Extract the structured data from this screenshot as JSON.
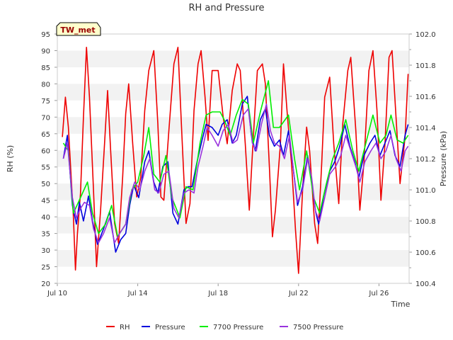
{
  "chart_data": {
    "type": "line",
    "title": "RH and Pressure",
    "badge": "TW_met",
    "xlabel": "Time",
    "ylabel_left": "RH (%)",
    "ylabel_right": "Pressure (kPa)",
    "x_range": [
      "Jul 10",
      "Jul 27.5"
    ],
    "ylim_left": [
      20,
      95
    ],
    "ylim_right": [
      100.4,
      102.0
    ],
    "x_ticks": [
      {
        "label": "Jul 10",
        "day": 0
      },
      {
        "label": "Jul 14",
        "day": 4
      },
      {
        "label": "Jul 18",
        "day": 8
      },
      {
        "label": "Jul 22",
        "day": 12
      },
      {
        "label": "Jul 26",
        "day": 16
      }
    ],
    "y_ticks_left": [
      20,
      25,
      30,
      35,
      40,
      45,
      50,
      55,
      60,
      65,
      70,
      75,
      80,
      85,
      90,
      95
    ],
    "y_ticks_right": [
      100.4,
      100.6,
      100.8,
      101.0,
      101.2,
      101.4,
      101.6,
      101.8,
      102.0
    ],
    "grid": "horizontal bands",
    "legend_position": "bottom",
    "series": [
      {
        "name": "RH",
        "axis": "left",
        "color": "#ee0000",
        "points": [
          [
            0.25,
            64
          ],
          [
            0.4,
            76
          ],
          [
            0.55,
            67
          ],
          [
            0.8,
            40
          ],
          [
            0.9,
            24
          ],
          [
            1.0,
            35
          ],
          [
            1.15,
            47
          ],
          [
            1.3,
            70
          ],
          [
            1.45,
            91
          ],
          [
            1.6,
            76
          ],
          [
            1.8,
            48
          ],
          [
            1.95,
            25
          ],
          [
            2.15,
            42
          ],
          [
            2.35,
            62
          ],
          [
            2.5,
            78
          ],
          [
            2.65,
            60
          ],
          [
            2.85,
            38
          ],
          [
            3.05,
            32
          ],
          [
            3.25,
            52
          ],
          [
            3.4,
            71
          ],
          [
            3.55,
            80
          ],
          [
            3.75,
            62
          ],
          [
            3.95,
            46
          ],
          [
            4.15,
            52
          ],
          [
            4.35,
            72
          ],
          [
            4.55,
            84
          ],
          [
            4.8,
            90
          ],
          [
            5.0,
            68
          ],
          [
            5.15,
            46
          ],
          [
            5.3,
            45
          ],
          [
            5.55,
            66
          ],
          [
            5.8,
            86
          ],
          [
            6.0,
            91
          ],
          [
            6.2,
            64
          ],
          [
            6.4,
            38
          ],
          [
            6.6,
            44
          ],
          [
            6.8,
            72
          ],
          [
            7.0,
            86
          ],
          [
            7.15,
            90
          ],
          [
            7.35,
            76
          ],
          [
            7.5,
            63
          ],
          [
            7.7,
            84
          ],
          [
            8.0,
            84
          ],
          [
            8.25,
            70
          ],
          [
            8.45,
            62
          ],
          [
            8.7,
            78
          ],
          [
            8.95,
            86
          ],
          [
            9.1,
            84
          ],
          [
            9.35,
            62
          ],
          [
            9.55,
            42
          ],
          [
            9.75,
            64
          ],
          [
            9.95,
            84
          ],
          [
            10.2,
            86
          ],
          [
            10.35,
            80
          ],
          [
            10.55,
            55
          ],
          [
            10.7,
            34
          ],
          [
            10.85,
            42
          ],
          [
            11.1,
            62
          ],
          [
            11.25,
            86
          ],
          [
            11.45,
            70
          ],
          [
            11.65,
            56
          ],
          [
            11.85,
            36
          ],
          [
            12.0,
            23
          ],
          [
            12.2,
            48
          ],
          [
            12.4,
            67
          ],
          [
            12.55,
            60
          ],
          [
            12.8,
            38
          ],
          [
            12.95,
            32
          ],
          [
            13.15,
            56
          ],
          [
            13.3,
            76
          ],
          [
            13.55,
            82
          ],
          [
            13.75,
            62
          ],
          [
            14.0,
            44
          ],
          [
            14.2,
            68
          ],
          [
            14.45,
            84
          ],
          [
            14.6,
            88
          ],
          [
            14.85,
            66
          ],
          [
            15.05,
            42
          ],
          [
            15.25,
            56
          ],
          [
            15.5,
            84
          ],
          [
            15.7,
            90
          ],
          [
            15.9,
            72
          ],
          [
            16.1,
            45
          ],
          [
            16.3,
            62
          ],
          [
            16.5,
            88
          ],
          [
            16.65,
            90
          ],
          [
            16.85,
            70
          ],
          [
            17.05,
            50
          ],
          [
            17.3,
            64
          ],
          [
            17.45,
            83
          ]
        ]
      },
      {
        "name": "Pressure",
        "axis": "right",
        "color": "#0000dd",
        "points": [
          [
            0.3,
            101.2
          ],
          [
            0.5,
            101.35
          ],
          [
            0.75,
            100.9
          ],
          [
            0.95,
            100.78
          ],
          [
            1.1,
            100.92
          ],
          [
            1.3,
            100.8
          ],
          [
            1.55,
            100.96
          ],
          [
            1.75,
            100.8
          ],
          [
            2.0,
            100.65
          ],
          [
            2.3,
            100.75
          ],
          [
            2.6,
            100.86
          ],
          [
            2.9,
            100.6
          ],
          [
            3.15,
            100.68
          ],
          [
            3.4,
            100.72
          ],
          [
            3.6,
            100.9
          ],
          [
            3.8,
            101.03
          ],
          [
            4.05,
            100.95
          ],
          [
            4.35,
            101.18
          ],
          [
            4.55,
            101.25
          ],
          [
            4.8,
            101.05
          ],
          [
            5.0,
            100.98
          ],
          [
            5.25,
            101.15
          ],
          [
            5.5,
            101.18
          ],
          [
            5.75,
            100.85
          ],
          [
            6.0,
            100.78
          ],
          [
            6.3,
            101.0
          ],
          [
            6.5,
            101.02
          ],
          [
            6.7,
            101.02
          ],
          [
            6.95,
            101.18
          ],
          [
            7.2,
            101.32
          ],
          [
            7.4,
            101.42
          ],
          [
            7.7,
            101.4
          ],
          [
            8.0,
            101.35
          ],
          [
            8.2,
            101.42
          ],
          [
            8.45,
            101.45
          ],
          [
            8.7,
            101.3
          ],
          [
            8.9,
            101.35
          ],
          [
            9.2,
            101.55
          ],
          [
            9.45,
            101.6
          ],
          [
            9.65,
            101.35
          ],
          [
            9.85,
            101.25
          ],
          [
            10.1,
            101.45
          ],
          [
            10.35,
            101.52
          ],
          [
            10.55,
            101.35
          ],
          [
            10.8,
            101.28
          ],
          [
            11.05,
            101.32
          ],
          [
            11.25,
            101.22
          ],
          [
            11.5,
            101.38
          ],
          [
            11.75,
            101.12
          ],
          [
            11.95,
            100.9
          ],
          [
            12.2,
            101.02
          ],
          [
            12.45,
            101.22
          ],
          [
            12.6,
            101.1
          ],
          [
            12.85,
            100.86
          ],
          [
            13.0,
            100.78
          ],
          [
            13.25,
            100.96
          ],
          [
            13.55,
            101.12
          ],
          [
            13.8,
            101.18
          ],
          [
            14.05,
            101.28
          ],
          [
            14.3,
            101.42
          ],
          [
            14.55,
            101.28
          ],
          [
            14.8,
            101.18
          ],
          [
            15.0,
            101.08
          ],
          [
            15.25,
            101.22
          ],
          [
            15.55,
            101.3
          ],
          [
            15.8,
            101.35
          ],
          [
            16.05,
            101.22
          ],
          [
            16.3,
            101.3
          ],
          [
            16.55,
            101.38
          ],
          [
            16.8,
            101.22
          ],
          [
            17.05,
            101.15
          ],
          [
            17.3,
            101.35
          ],
          [
            17.45,
            101.42
          ]
        ]
      },
      {
        "name": "7700 Pressure",
        "axis": "right",
        "color": "#00ee00",
        "points": [
          [
            0.3,
            101.3
          ],
          [
            0.55,
            101.25
          ],
          [
            0.8,
            100.85
          ],
          [
            1.15,
            100.95
          ],
          [
            1.5,
            101.05
          ],
          [
            1.75,
            100.85
          ],
          [
            2.05,
            100.72
          ],
          [
            2.4,
            100.78
          ],
          [
            2.7,
            100.9
          ],
          [
            3.0,
            100.7
          ],
          [
            3.4,
            100.78
          ],
          [
            3.7,
            101.0
          ],
          [
            4.0,
            101.05
          ],
          [
            4.3,
            101.22
          ],
          [
            4.55,
            101.4
          ],
          [
            4.8,
            101.1
          ],
          [
            5.1,
            101.05
          ],
          [
            5.4,
            101.22
          ],
          [
            5.7,
            100.95
          ],
          [
            6.1,
            100.82
          ],
          [
            6.4,
            101.02
          ],
          [
            6.75,
            101.0
          ],
          [
            7.1,
            101.3
          ],
          [
            7.4,
            101.48
          ],
          [
            7.7,
            101.5
          ],
          [
            8.1,
            101.5
          ],
          [
            8.3,
            101.45
          ],
          [
            8.6,
            101.35
          ],
          [
            8.9,
            101.48
          ],
          [
            9.2,
            101.58
          ],
          [
            9.5,
            101.55
          ],
          [
            9.75,
            101.3
          ],
          [
            10.1,
            101.5
          ],
          [
            10.5,
            101.7
          ],
          [
            10.75,
            101.4
          ],
          [
            11.05,
            101.4
          ],
          [
            11.5,
            101.48
          ],
          [
            11.8,
            101.2
          ],
          [
            12.05,
            101.0
          ],
          [
            12.4,
            101.25
          ],
          [
            12.75,
            100.95
          ],
          [
            13.05,
            100.85
          ],
          [
            13.4,
            101.05
          ],
          [
            13.7,
            101.2
          ],
          [
            14.0,
            101.3
          ],
          [
            14.35,
            101.45
          ],
          [
            14.7,
            101.25
          ],
          [
            15.0,
            101.12
          ],
          [
            15.35,
            101.3
          ],
          [
            15.7,
            101.48
          ],
          [
            16.05,
            101.3
          ],
          [
            16.35,
            101.35
          ],
          [
            16.6,
            101.48
          ],
          [
            16.9,
            101.32
          ],
          [
            17.2,
            101.3
          ],
          [
            17.45,
            101.35
          ]
        ]
      },
      {
        "name": "7500 Pressure",
        "axis": "right",
        "color": "#9933dd",
        "points": [
          [
            0.3,
            101.2
          ],
          [
            0.5,
            101.3
          ],
          [
            0.75,
            100.95
          ],
          [
            0.95,
            100.82
          ],
          [
            1.15,
            100.88
          ],
          [
            1.35,
            100.92
          ],
          [
            1.6,
            100.9
          ],
          [
            1.8,
            100.75
          ],
          [
            2.05,
            100.66
          ],
          [
            2.3,
            100.72
          ],
          [
            2.6,
            100.82
          ],
          [
            2.85,
            100.66
          ],
          [
            3.1,
            100.72
          ],
          [
            3.4,
            100.78
          ],
          [
            3.6,
            100.95
          ],
          [
            3.85,
            101.05
          ],
          [
            4.1,
            101.0
          ],
          [
            4.35,
            101.12
          ],
          [
            4.6,
            101.2
          ],
          [
            4.85,
            101.0
          ],
          [
            5.05,
            100.98
          ],
          [
            5.3,
            101.1
          ],
          [
            5.55,
            101.12
          ],
          [
            5.8,
            100.88
          ],
          [
            6.05,
            100.82
          ],
          [
            6.3,
            100.98
          ],
          [
            6.55,
            101.0
          ],
          [
            6.8,
            100.98
          ],
          [
            7.0,
            101.15
          ],
          [
            7.25,
            101.28
          ],
          [
            7.45,
            101.4
          ],
          [
            7.7,
            101.35
          ],
          [
            8.0,
            101.28
          ],
          [
            8.25,
            101.38
          ],
          [
            8.5,
            101.42
          ],
          [
            8.75,
            101.3
          ],
          [
            8.95,
            101.32
          ],
          [
            9.25,
            101.48
          ],
          [
            9.5,
            101.52
          ],
          [
            9.7,
            101.3
          ],
          [
            9.9,
            101.25
          ],
          [
            10.15,
            101.42
          ],
          [
            10.4,
            101.55
          ],
          [
            10.6,
            101.38
          ],
          [
            10.8,
            101.3
          ],
          [
            11.05,
            101.28
          ],
          [
            11.3,
            101.2
          ],
          [
            11.55,
            101.35
          ],
          [
            11.75,
            101.12
          ],
          [
            11.95,
            100.92
          ],
          [
            12.2,
            101.0
          ],
          [
            12.45,
            101.2
          ],
          [
            12.65,
            101.08
          ],
          [
            12.85,
            100.86
          ],
          [
            13.05,
            100.8
          ],
          [
            13.3,
            100.95
          ],
          [
            13.55,
            101.1
          ],
          [
            13.85,
            101.15
          ],
          [
            14.1,
            101.22
          ],
          [
            14.35,
            101.35
          ],
          [
            14.6,
            101.25
          ],
          [
            14.85,
            101.15
          ],
          [
            15.05,
            101.05
          ],
          [
            15.3,
            101.18
          ],
          [
            15.6,
            101.25
          ],
          [
            15.85,
            101.3
          ],
          [
            16.1,
            101.2
          ],
          [
            16.35,
            101.25
          ],
          [
            16.6,
            101.35
          ],
          [
            16.85,
            101.2
          ],
          [
            17.1,
            101.12
          ],
          [
            17.3,
            101.25
          ],
          [
            17.45,
            101.28
          ]
        ]
      }
    ]
  }
}
